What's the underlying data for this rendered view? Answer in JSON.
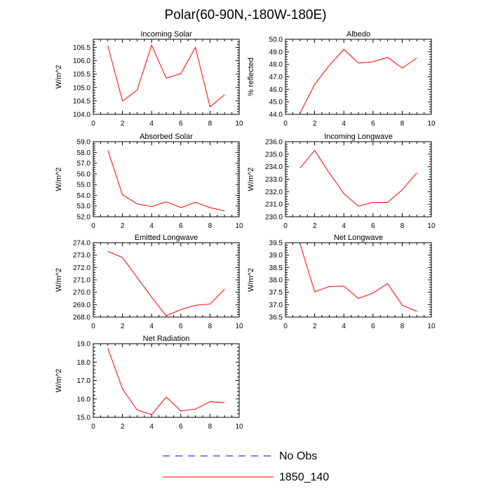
{
  "title": "Polar(60-90N,-180W-180E)",
  "colors": {
    "model": "#ff0000",
    "obs": "#0000ff",
    "axis": "#000000"
  },
  "legend": [
    {
      "label": "No Obs",
      "style": "dashed",
      "color": "#0000ff"
    },
    {
      "label": "1850_140",
      "style": "solid",
      "color": "#ff0000"
    }
  ],
  "chart_data": [
    {
      "type": "line",
      "title": "Incoming Solar",
      "xlabel": "",
      "ylabel": "W/m^2",
      "xlim": [
        0,
        10
      ],
      "ylim": [
        104.0,
        106.8
      ],
      "xticks": [
        0,
        2,
        4,
        6,
        8,
        10
      ],
      "yticks": [
        "104.0",
        "104.5",
        "105.0",
        "105.5",
        "106.0",
        "106.5"
      ],
      "series": [
        {
          "name": "1850_140",
          "x": [
            1,
            2,
            3,
            4,
            5,
            6,
            7,
            8,
            9
          ],
          "values": [
            106.55,
            104.5,
            104.9,
            106.58,
            105.35,
            105.52,
            106.5,
            104.28,
            104.73
          ]
        }
      ]
    },
    {
      "type": "line",
      "title": "Albedo",
      "xlabel": "",
      "ylabel": "% reflected",
      "xlim": [
        0,
        10
      ],
      "ylim": [
        44.0,
        50.0
      ],
      "xticks": [
        0,
        2,
        4,
        6,
        8,
        10
      ],
      "yticks": [
        "44.0",
        "45.0",
        "46.0",
        "47.0",
        "48.0",
        "49.0",
        "50.0"
      ],
      "series": [
        {
          "name": "1850_140",
          "x": [
            1,
            2,
            3,
            4,
            5,
            6,
            7,
            8,
            9
          ],
          "values": [
            44.1,
            46.4,
            47.9,
            49.2,
            48.1,
            48.2,
            48.55,
            47.7,
            48.5
          ]
        }
      ]
    },
    {
      "type": "line",
      "title": "Absorbed Solar",
      "xlabel": "",
      "ylabel": "W/m^2",
      "xlim": [
        0,
        10
      ],
      "ylim": [
        52.0,
        59.0
      ],
      "xticks": [
        0,
        2,
        4,
        6,
        8,
        10
      ],
      "yticks": [
        "52.0",
        "53.0",
        "54.0",
        "55.0",
        "56.0",
        "57.0",
        "58.0",
        "59.0"
      ],
      "series": [
        {
          "name": "1850_140",
          "x": [
            1,
            2,
            3,
            4,
            5,
            6,
            7,
            8,
            9
          ],
          "values": [
            58.2,
            54.05,
            53.2,
            52.95,
            53.4,
            52.85,
            53.35,
            52.85,
            52.55
          ]
        }
      ]
    },
    {
      "type": "line",
      "title": "Incoming Longwave",
      "xlabel": "",
      "ylabel": "W/m^2",
      "xlim": [
        0,
        10
      ],
      "ylim": [
        230.0,
        236.0
      ],
      "xticks": [
        0,
        2,
        4,
        6,
        8,
        10
      ],
      "yticks": [
        "230.0",
        "231.0",
        "232.0",
        "233.0",
        "234.0",
        "235.0",
        "236.0"
      ],
      "series": [
        {
          "name": "1850_140",
          "x": [
            1,
            2,
            3,
            4,
            5,
            6,
            7,
            8,
            9
          ],
          "values": [
            233.9,
            235.3,
            233.5,
            231.85,
            230.85,
            231.15,
            231.15,
            232.15,
            233.5
          ]
        }
      ]
    },
    {
      "type": "line",
      "title": "Emitted Longwave",
      "xlabel": "",
      "ylabel": "W/m^2",
      "xlim": [
        0,
        10
      ],
      "ylim": [
        268.0,
        274.0
      ],
      "xticks": [
        0,
        2,
        4,
        6,
        8,
        10
      ],
      "yticks": [
        "268.0",
        "269.0",
        "270.0",
        "271.0",
        "272.0",
        "273.0",
        "274.0"
      ],
      "series": [
        {
          "name": "1850_140",
          "x": [
            1,
            2,
            3,
            4,
            5,
            6,
            7,
            8,
            9
          ],
          "values": [
            273.3,
            272.8,
            271.2,
            269.6,
            268.1,
            268.6,
            268.95,
            269.05,
            270.25
          ]
        }
      ]
    },
    {
      "type": "line",
      "title": "Net Longwave",
      "xlabel": "",
      "ylabel": "W/m^2",
      "xlim": [
        0,
        10
      ],
      "ylim": [
        36.5,
        39.5
      ],
      "xticks": [
        0,
        2,
        4,
        6,
        8,
        10
      ],
      "yticks": [
        "36.5",
        "37.0",
        "37.5",
        "38.0",
        "38.5",
        "39.0",
        "39.5"
      ],
      "series": [
        {
          "name": "1850_140",
          "x": [
            1,
            2,
            3,
            4,
            5,
            6,
            7,
            8,
            9
          ],
          "values": [
            39.45,
            37.52,
            37.73,
            37.75,
            37.25,
            37.47,
            37.85,
            36.98,
            36.73
          ]
        }
      ]
    },
    {
      "type": "line",
      "title": "Net Radiation",
      "xlabel": "",
      "ylabel": "W/m^2",
      "xlim": [
        0,
        10
      ],
      "ylim": [
        15.0,
        19.0
      ],
      "xticks": [
        0,
        2,
        4,
        6,
        8,
        10
      ],
      "yticks": [
        "15.0",
        "16.0",
        "17.0",
        "18.0",
        "19.0"
      ],
      "series": [
        {
          "name": "1850_140",
          "x": [
            1,
            2,
            3,
            4,
            5,
            6,
            7,
            8,
            9
          ],
          "values": [
            18.75,
            16.55,
            15.4,
            15.15,
            16.1,
            15.35,
            15.45,
            15.85,
            15.8
          ]
        }
      ]
    }
  ]
}
